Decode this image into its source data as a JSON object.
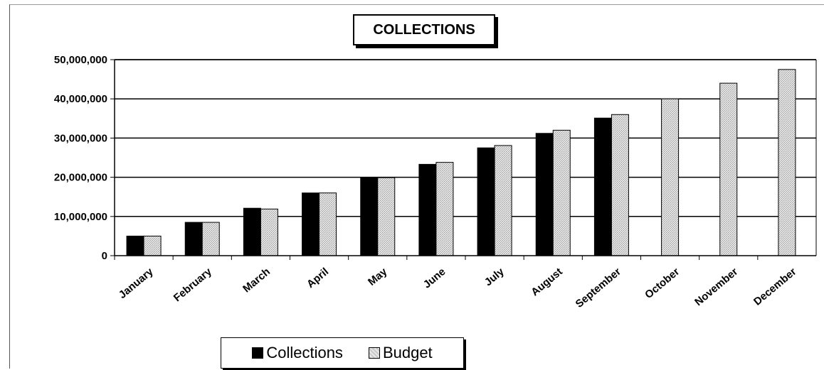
{
  "chart_data": {
    "type": "bar",
    "title": "COLLECTIONS",
    "categories": [
      "January",
      "February",
      "March",
      "April",
      "May",
      "June",
      "July",
      "August",
      "September",
      "October",
      "November",
      "December"
    ],
    "series": [
      {
        "name": "Collections",
        "color": "#000000",
        "values": [
          5000000,
          8500000,
          12100000,
          16000000,
          20000000,
          23300000,
          27500000,
          31200000,
          35100000,
          null,
          null,
          null
        ]
      },
      {
        "name": "Budget",
        "color": "#d0d0d0",
        "values": [
          5000000,
          8500000,
          11900000,
          16000000,
          19900000,
          23800000,
          28100000,
          32000000,
          36000000,
          40000000,
          44000000,
          47500000
        ]
      }
    ],
    "y_ticks": [
      "0",
      "10,000,000",
      "20,000,000",
      "30,000,000",
      "40,000,000",
      "50,000,000"
    ],
    "ylim": [
      0,
      50000000
    ],
    "grid": true,
    "legend_position": "bottom"
  }
}
